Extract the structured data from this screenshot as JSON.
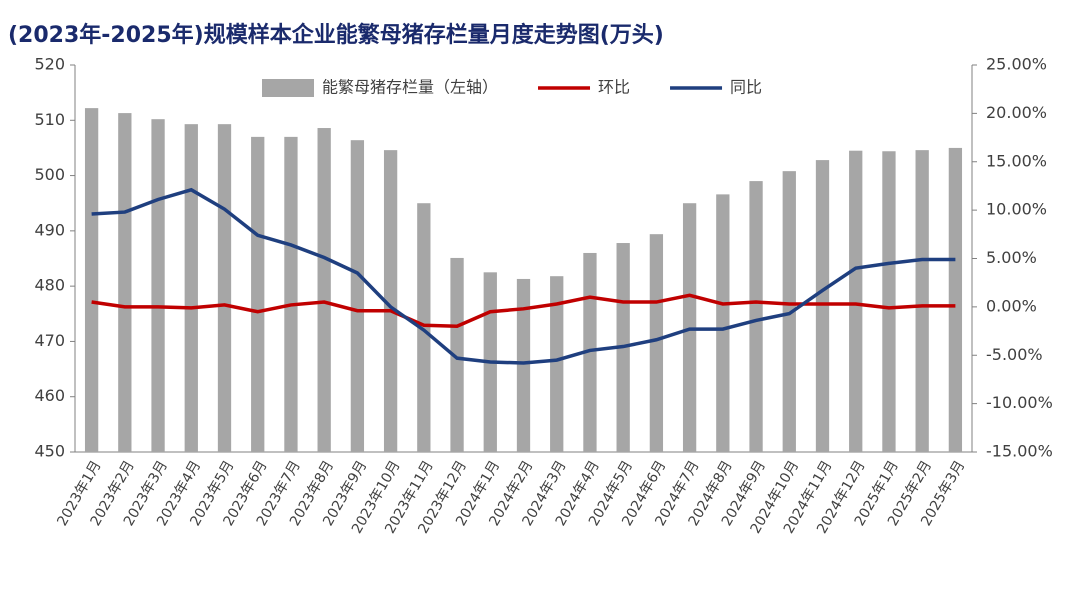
{
  "chart_data": {
    "type": "bar_line",
    "title": "(2023年-2025年)规模样本企业能繁母猪存栏量月度走势图(万头)",
    "categories": [
      "2023年1月",
      "2023年2月",
      "2023年3月",
      "2023年4月",
      "2023年5月",
      "2023年6月",
      "2023年7月",
      "2023年8月",
      "2023年9月",
      "2023年10月",
      "2023年11月",
      "2023年12月",
      "2024年1月",
      "2024年2月",
      "2024年3月",
      "2024年4月",
      "2024年5月",
      "2024年6月",
      "2024年7月",
      "2024年8月",
      "2024年9月",
      "2024年10月",
      "2024年11月",
      "2024年12月",
      "2025年1月",
      "2025年2月",
      "2025年3月"
    ],
    "series": [
      {
        "name": "能繁母猪存栏量（左轴）",
        "type": "bar",
        "color": "#a6a6a6",
        "values": [
          512.2,
          511.3,
          510.2,
          509.3,
          509.3,
          507.0,
          507.0,
          508.6,
          506.4,
          504.6,
          495.0,
          485.1,
          482.5,
          481.3,
          481.8,
          486.0,
          487.8,
          489.4,
          495.0,
          496.6,
          499.0,
          500.8,
          502.8,
          504.5,
          504.4,
          504.6,
          505.0
        ]
      },
      {
        "name": "环比",
        "type": "line",
        "axis": "y2",
        "color": "#c00000",
        "values": [
          0.5,
          0.0,
          0.0,
          -0.1,
          0.2,
          -0.5,
          0.2,
          0.5,
          -0.4,
          -0.4,
          -1.9,
          -2.0,
          -0.5,
          -0.2,
          0.3,
          1.0,
          0.5,
          0.5,
          1.2,
          0.3,
          0.5,
          0.3,
          0.3,
          0.3,
          -0.1,
          0.1,
          0.1
        ]
      },
      {
        "name": "同比",
        "type": "line",
        "axis": "y2",
        "color": "#1f3f7f",
        "values": [
          9.6,
          9.8,
          11.1,
          12.1,
          10.1,
          7.4,
          6.4,
          5.1,
          3.5,
          0.0,
          -2.4,
          -5.3,
          -5.7,
          -5.8,
          -5.5,
          -4.5,
          -4.1,
          -3.4,
          -2.3,
          -2.3,
          -1.4,
          -0.7,
          1.7,
          4.0,
          4.5,
          4.9,
          4.9
        ]
      }
    ],
    "ylim": [
      450,
      520
    ],
    "yticks": [
      450,
      460,
      470,
      480,
      490,
      500,
      510,
      520
    ],
    "y2lim": [
      -15,
      25
    ],
    "y2ticks": [
      {
        "value": -15,
        "label": "-15.00%"
      },
      {
        "value": -10,
        "label": "-10.00%"
      },
      {
        "value": -5,
        "label": "-5.00%"
      },
      {
        "value": 0,
        "label": "0.00%"
      },
      {
        "value": 5,
        "label": "5.00%"
      },
      {
        "value": 10,
        "label": "10.00%"
      },
      {
        "value": 15,
        "label": "15.00%"
      },
      {
        "value": 20,
        "label": "20.00%"
      },
      {
        "value": 25,
        "label": "25.00%"
      }
    ],
    "legend": "top"
  }
}
